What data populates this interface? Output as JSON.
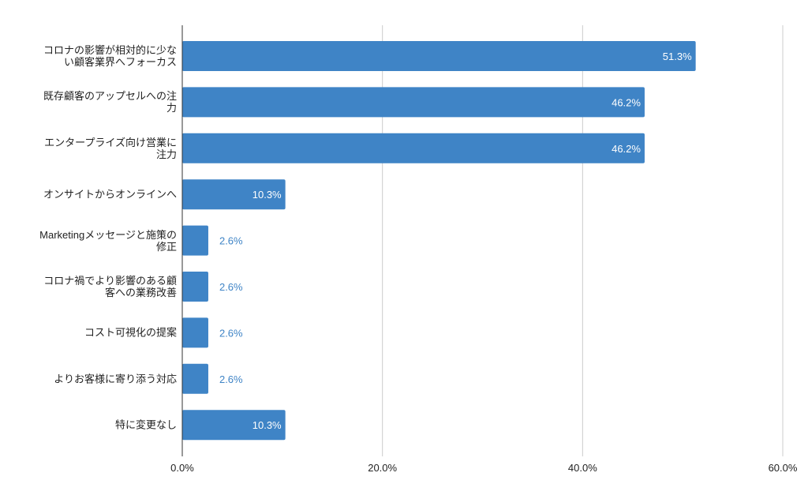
{
  "chart_data": {
    "type": "bar",
    "orientation": "horizontal",
    "categories": [
      "コロナの影響が相対的に少な\nい顧客業界へフォーカス",
      "既存顧客のアップセルへの注\n力",
      "エンタープライズ向け営業に\n注力",
      "オンサイトからオンラインへ",
      "Marketingメッセージと施策の\n修正",
      "コロナ禍でより影響のある顧\n客への業務改善",
      "コスト可視化の提案",
      "よりお客様に寄り添う対応",
      "特に変更なし"
    ],
    "values": [
      51.3,
      46.2,
      46.2,
      10.3,
      2.6,
      2.6,
      2.6,
      2.6,
      10.3
    ],
    "data_labels": [
      "51.3%",
      "46.2%",
      "46.2%",
      "10.3%",
      "2.6%",
      "2.6%",
      "2.6%",
      "2.6%",
      "10.3%"
    ],
    "xlim": [
      0,
      60
    ],
    "x_ticks": [
      0,
      20,
      40,
      60
    ],
    "x_tick_labels": [
      "0.0%",
      "20.0%",
      "40.0%",
      "60.0%"
    ],
    "grid": true,
    "bar_color": "#3f84c6",
    "title": "",
    "xlabel": "",
    "ylabel": ""
  }
}
